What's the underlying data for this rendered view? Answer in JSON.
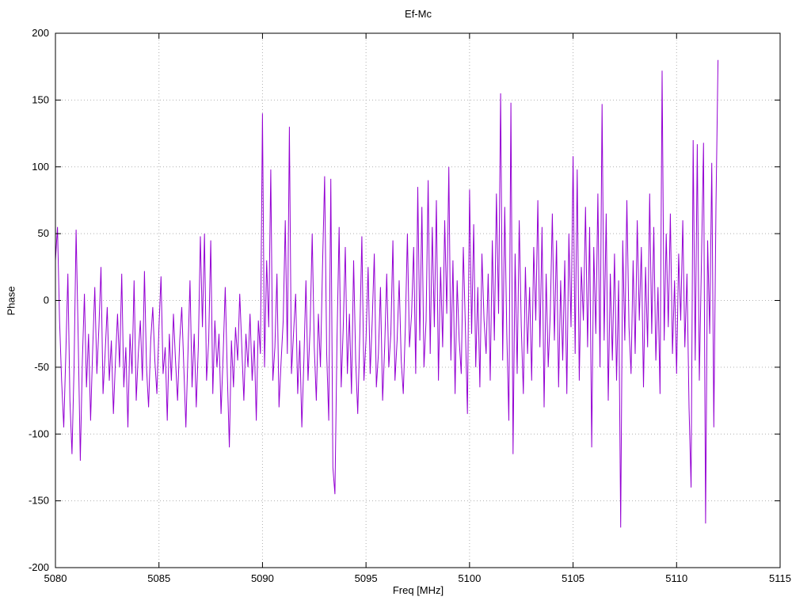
{
  "chart_data": {
    "type": "line",
    "title": "Ef-Mc",
    "xlabel": "Freq [MHz]",
    "ylabel": "Phase",
    "xlim": [
      5080,
      5115
    ],
    "ylim": [
      -200,
      200
    ],
    "xticks": [
      5080,
      5085,
      5090,
      5095,
      5100,
      5105,
      5110,
      5115
    ],
    "yticks": [
      -200,
      -150,
      -100,
      -50,
      0,
      50,
      100,
      150,
      200
    ],
    "grid": true,
    "legend": "none",
    "line_color": "#9400d3",
    "grid_color": "#b0b0b0",
    "axis_color": "#000000",
    "series": [
      {
        "name": "Ef-Mc phase",
        "x_start": 5080.0,
        "x_step": 0.1,
        "values": [
          30,
          55,
          -15,
          -60,
          -95,
          -40,
          20,
          -75,
          -115,
          -50,
          53,
          -30,
          -120,
          -45,
          5,
          -65,
          -25,
          -90,
          -35,
          10,
          -55,
          -20,
          25,
          -70,
          -40,
          -5,
          -60,
          -30,
          -85,
          -45,
          -10,
          -50,
          20,
          -65,
          -35,
          -95,
          -25,
          -55,
          15,
          -75,
          -40,
          -15,
          -60,
          22,
          -50,
          -80,
          -30,
          -5,
          -45,
          -70,
          -20,
          18,
          -55,
          -35,
          -90,
          -25,
          -60,
          -10,
          -45,
          -75,
          -30,
          -5,
          -50,
          -95,
          -40,
          15,
          -65,
          -25,
          -80,
          -35,
          48,
          -20,
          50,
          -60,
          -30,
          45,
          -70,
          -15,
          -50,
          -25,
          -85,
          -40,
          10,
          -55,
          -110,
          -30,
          -65,
          -20,
          -45,
          5,
          -35,
          -75,
          -25,
          -50,
          -10,
          -60,
          -30,
          -90,
          -15,
          -40,
          140,
          -50,
          30,
          -20,
          98,
          -60,
          -35,
          20,
          -80,
          -45,
          -15,
          60,
          -40,
          130,
          -55,
          -25,
          5,
          -70,
          -30,
          -95,
          -45,
          15,
          -60,
          -20,
          50,
          -35,
          -75,
          -10,
          -50,
          25,
          93,
          -40,
          -90,
          91,
          -125,
          -145,
          -30,
          55,
          -65,
          -20,
          40,
          -55,
          -10,
          -70,
          30,
          -45,
          -85,
          -25,
          48,
          -60,
          -30,
          25,
          -55,
          -15,
          35,
          -65,
          -40,
          10,
          -75,
          -35,
          20,
          -50,
          -25,
          45,
          -60,
          -30,
          15,
          -45,
          -70,
          -20,
          50,
          -35,
          -10,
          40,
          -55,
          85,
          -30,
          70,
          -50,
          -15,
          90,
          -40,
          55,
          -20,
          75,
          -60,
          25,
          -35,
          60,
          -10,
          100,
          -45,
          30,
          -70,
          15,
          -30,
          -55,
          40,
          -20,
          -85,
          83,
          -25,
          57,
          -50,
          10,
          -65,
          35,
          -15,
          -40,
          20,
          -60,
          45,
          -30,
          80,
          -10,
          155,
          -45,
          70,
          -25,
          -90,
          148,
          -115,
          35,
          -55,
          60,
          -20,
          -70,
          25,
          -40,
          10,
          -60,
          40,
          -15,
          75,
          -35,
          55,
          -80,
          20,
          -50,
          -10,
          65,
          -30,
          45,
          -65,
          15,
          -45,
          30,
          -70,
          50,
          -20,
          108,
          -40,
          98,
          -60,
          25,
          -15,
          70,
          -35,
          55,
          -110,
          40,
          -25,
          80,
          -50,
          147,
          -30,
          65,
          -75,
          20,
          -45,
          35,
          -60,
          15,
          -170,
          45,
          -30,
          75,
          -20,
          -55,
          30,
          -40,
          60,
          -15,
          40,
          -65,
          25,
          -35,
          80,
          -25,
          55,
          -45,
          10,
          -70,
          172,
          -30,
          50,
          -20,
          65,
          -40,
          15,
          -55,
          35,
          -15,
          60,
          -35,
          20,
          -80,
          -140,
          120,
          -45,
          117,
          -60,
          30,
          118,
          -167,
          45,
          -25,
          103,
          -95,
          70,
          180
        ]
      }
    ]
  }
}
